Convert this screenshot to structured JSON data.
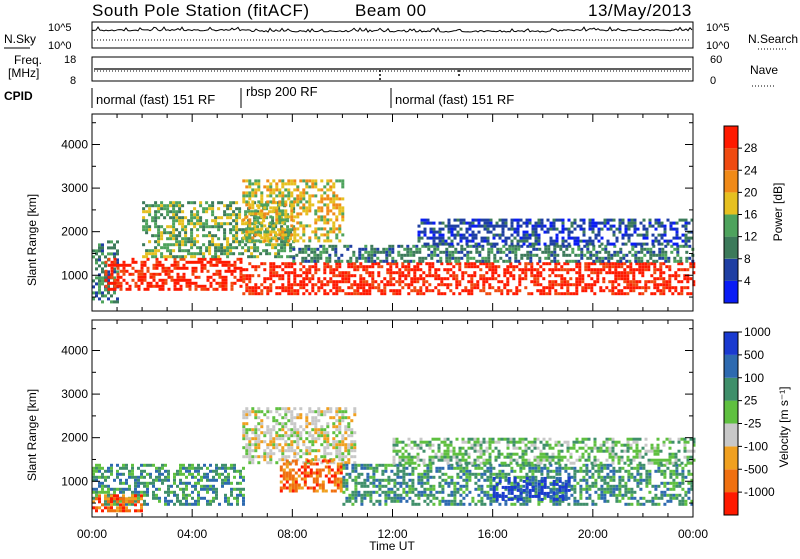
{
  "header": {
    "station": "South Pole Station (fitACF)",
    "beam": "Beam 00",
    "date": "13/May/2013"
  },
  "status_panels": {
    "nsky_label": "N.Sky",
    "nsearch_label": "N.Search",
    "power_ticks": [
      "10^5",
      "10^0"
    ],
    "freq_label_1": "Freq.",
    "freq_label_2": "[MHz]",
    "freq_ticks": [
      "18",
      "8"
    ],
    "nave_label": "Nave",
    "nave_ticks": [
      "60",
      "0"
    ],
    "cpid_label": "CPID"
  },
  "modes": [
    {
      "label": "normal (fast) 151 RF",
      "start_hour": 0,
      "end_hour": 6
    },
    {
      "label": "rbsp 200 RF",
      "start_hour": 6,
      "end_hour": 12
    },
    {
      "label": "normal (fast) 151 RF",
      "start_hour": 12,
      "end_hour": 24
    }
  ],
  "axes": {
    "xlabel": "Time UT",
    "x_ticks": [
      "00:00",
      "04:00",
      "08:00",
      "12:00",
      "16:00",
      "20:00",
      "00:00"
    ],
    "x_range_hours": [
      0,
      24
    ],
    "ylabel": "Slant Range [km]",
    "y_ticks": [
      "1000",
      "2000",
      "3000",
      "4000"
    ],
    "y_range_km": [
      180,
      4700
    ]
  },
  "colors": {
    "power": [
      "#0a1cf5",
      "#1f3fa3",
      "#3c7a5a",
      "#4ea35d",
      "#e6c020",
      "#f08a18",
      "#f04a10",
      "#ff1a00"
    ],
    "velocity": [
      "#1a3ad0",
      "#2e6ab0",
      "#3f8f6a",
      "#5fc040",
      "#c8c8c8",
      "#f0a020",
      "#f07010",
      "#ff1a00"
    ]
  },
  "chart_data": [
    {
      "type": "heatmap",
      "name": "Power",
      "units": "dB",
      "xlabel": "Time UT",
      "ylabel": "Slant Range [km]",
      "xlim_hours": [
        0,
        24
      ],
      "ylim_km": [
        180,
        4700
      ],
      "colorbar_label": "Power [dB]",
      "colorbar_ticks": [
        "4",
        "8",
        "12",
        "16",
        "20",
        "24",
        "28"
      ],
      "bands": [
        {
          "t0": 0.0,
          "t1": 1.0,
          "r0": 400,
          "r1": 1800,
          "level": 2
        },
        {
          "t0": 0.5,
          "t1": 6.0,
          "r0": 700,
          "r1": 1400,
          "level": 7
        },
        {
          "t0": 2.0,
          "t1": 8.0,
          "r0": 1400,
          "r1": 2700,
          "level": 3
        },
        {
          "t0": 6.0,
          "t1": 10.0,
          "r0": 1800,
          "r1": 3200,
          "level": 4
        },
        {
          "t0": 6.0,
          "t1": 24.0,
          "r0": 550,
          "r1": 1300,
          "level": 7
        },
        {
          "t0": 8.0,
          "t1": 24.0,
          "r0": 1300,
          "r1": 1700,
          "level": 2
        },
        {
          "t0": 13.0,
          "t1": 24.0,
          "r0": 1700,
          "r1": 2300,
          "level": 1
        }
      ]
    },
    {
      "type": "heatmap",
      "name": "Velocity",
      "units": "m s^-1",
      "xlabel": "Time UT",
      "ylabel": "Slant Range [km]",
      "xlim_hours": [
        0,
        24
      ],
      "ylim_km": [
        180,
        4700
      ],
      "colorbar_label": "Velocity [m s⁻¹]",
      "colorbar_ticks": [
        "1000",
        "500",
        "100",
        "25",
        "-25",
        "-100",
        "-500",
        "-1000"
      ],
      "bands": [
        {
          "t0": 0.0,
          "t1": 6.0,
          "r0": 450,
          "r1": 1400,
          "level": 2
        },
        {
          "t0": 0.0,
          "t1": 2.0,
          "r0": 300,
          "r1": 700,
          "level": 6
        },
        {
          "t0": 6.0,
          "t1": 10.5,
          "r0": 1400,
          "r1": 2700,
          "level": 4
        },
        {
          "t0": 7.5,
          "t1": 10.0,
          "r0": 800,
          "r1": 1500,
          "level": 6
        },
        {
          "t0": 10.0,
          "t1": 24.0,
          "r0": 500,
          "r1": 1400,
          "level": 2
        },
        {
          "t0": 16.0,
          "t1": 19.0,
          "r0": 600,
          "r1": 1100,
          "level": 0
        },
        {
          "t0": 12.0,
          "t1": 24.0,
          "r0": 1400,
          "r1": 2000,
          "level": 3
        }
      ]
    }
  ]
}
